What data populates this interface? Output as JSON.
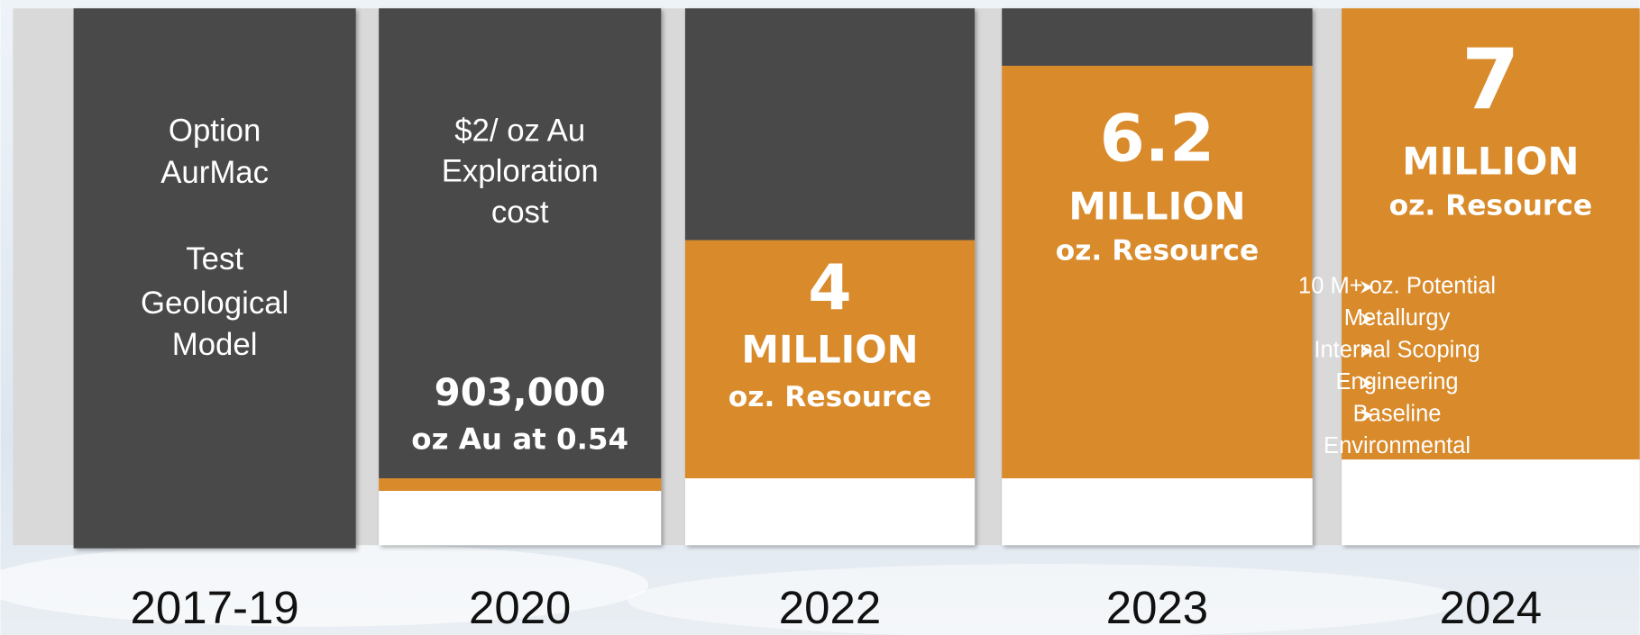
{
  "columns": [
    {
      "year": "2017-19",
      "lines": [
        "Option",
        "AurMac",
        "Test",
        "Geological",
        "Model"
      ]
    },
    {
      "year": "2020",
      "lines": [
        "$2/ oz Au",
        "Exploration",
        "cost"
      ],
      "highlight": [
        "903,000",
        "oz Au at 0.54"
      ]
    },
    {
      "year": "2022",
      "big": "4",
      "highlight": [
        "MILLION",
        "oz. Resource"
      ]
    },
    {
      "year": "2023",
      "big": "6.2",
      "highlight": [
        "MILLION",
        "oz. Resource"
      ]
    },
    {
      "year": "2024",
      "big": "7",
      "highlight": [
        "MILLION",
        "oz. Resource"
      ],
      "bullets": [
        [
          "10 M+ oz. Potential"
        ],
        [
          "Metallurgy"
        ],
        [
          "Internal Scoping"
        ],
        [
          "Engineering"
        ],
        [
          "Baseline",
          "Environmental"
        ]
      ]
    }
  ]
}
